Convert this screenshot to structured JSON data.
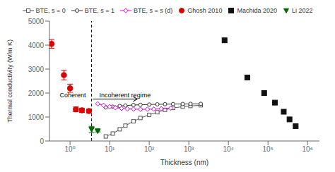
{
  "chart_data": {
    "type": "line",
    "xlabel": "Thickness (nm)",
    "ylabel": "Thermal conductivity (W/m K)",
    "log": "x",
    "xlim": [
      0.30199517204020154,
      1995262.3149688789
    ],
    "xticks": [
      {
        "value": 1,
        "label": "10⁰"
      },
      {
        "value": 10,
        "label": "10¹"
      },
      {
        "value": 100,
        "label": "10²"
      },
      {
        "value": 1000,
        "label": "10³"
      },
      {
        "value": 10000,
        "label": "10⁴"
      },
      {
        "value": 100000,
        "label": "10⁵"
      },
      {
        "value": 1000000,
        "label": "10⁶"
      }
    ],
    "ylim": [
      0,
      5000
    ],
    "yticks": [
      0,
      1000,
      2000,
      3000,
      4000,
      5000
    ],
    "grid": false,
    "legend": "top",
    "series": [
      {
        "name": "BTE, s = 0",
        "type": "line",
        "marker": "square",
        "color": "#555555",
        "x": [
          8,
          12,
          18,
          25,
          40,
          60,
          100,
          160,
          250,
          400,
          700,
          1100,
          2000
        ],
        "values": [
          190,
          310,
          490,
          640,
          820,
          960,
          1090,
          1200,
          1300,
          1380,
          1430,
          1460,
          1490
        ]
      },
      {
        "name": "BTE, s = 1",
        "type": "line",
        "marker": "circle",
        "color": "#333333",
        "x": [
          8,
          12,
          18,
          25,
          40,
          60,
          100,
          160,
          250,
          400,
          700,
          1100,
          2000
        ],
        "values": [
          1400,
          1430,
          1460,
          1480,
          1500,
          1510,
          1520,
          1530,
          1535,
          1540,
          1545,
          1548,
          1550
        ]
      },
      {
        "name": "BTE, s = s (d)",
        "type": "line",
        "marker": "diamond",
        "color": "#dd00dd",
        "x": [
          5,
          7,
          10,
          14,
          20,
          28,
          40,
          60,
          90,
          130,
          200,
          350
        ],
        "values": [
          1550,
          1490,
          1430,
          1390,
          1360,
          1340,
          1330,
          1320,
          1325,
          1330,
          1345,
          1370
        ]
      },
      {
        "name": "Ghosh 2010",
        "type": "scatter",
        "marker": "circle",
        "color": "#dd0000",
        "x": [
          0.34,
          0.7,
          1.0,
          1.4,
          2.0,
          3.0
        ],
        "values": [
          4050,
          2750,
          2200,
          1320,
          1280,
          1250
        ],
        "yerr": [
          180,
          200,
          170,
          100,
          90,
          80
        ]
      },
      {
        "name": "Machida 2020",
        "type": "scatter",
        "marker": "square",
        "color": "#111111",
        "x": [
          8000,
          30000,
          80000,
          150000,
          250000,
          350000,
          500000
        ],
        "values": [
          4200,
          2650,
          2000,
          1600,
          1220,
          900,
          620
        ]
      },
      {
        "name": "Li 2022",
        "type": "scatter",
        "marker": "triangle-down",
        "color": "#006400",
        "x": [
          3.5,
          5.0
        ],
        "values": [
          480,
          420
        ],
        "yerr": [
          130,
          40
        ]
      }
    ],
    "vlines": [
      {
        "x": 3.5,
        "line_style": "dashed",
        "color": "black"
      }
    ],
    "arrows": [
      {
        "x_from": 3.78,
        "x_to": 50,
        "y": 1750,
        "color": "black"
      }
    ],
    "annotations": [
      {
        "text": "Coherent",
        "x": 0.55,
        "y": 1820
      },
      {
        "text": "Incoherent regime",
        "x": 5.5,
        "y": 1820
      }
    ]
  }
}
